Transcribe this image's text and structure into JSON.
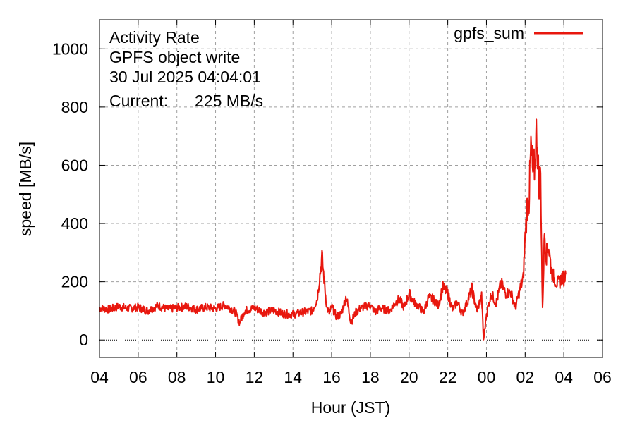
{
  "chart_data": {
    "type": "line",
    "title_lines": [
      "Activity Rate",
      "GPFS object write",
      "30 Jul 2025 04:04:01"
    ],
    "current_label": "Current:",
    "current_value": "225 MB/s",
    "xlabel": "Hour (JST)",
    "ylabel": "speed [MB/s]",
    "xlim": [
      0,
      26
    ],
    "ylim": [
      -60,
      1100
    ],
    "x_ticks": [
      {
        "v": 0,
        "label": "04"
      },
      {
        "v": 2,
        "label": "06"
      },
      {
        "v": 4,
        "label": "08"
      },
      {
        "v": 6,
        "label": "10"
      },
      {
        "v": 8,
        "label": "12"
      },
      {
        "v": 10,
        "label": "14"
      },
      {
        "v": 12,
        "label": "16"
      },
      {
        "v": 14,
        "label": "18"
      },
      {
        "v": 16,
        "label": "20"
      },
      {
        "v": 18,
        "label": "22"
      },
      {
        "v": 20,
        "label": "00"
      },
      {
        "v": 22,
        "label": "02"
      },
      {
        "v": 24,
        "label": "04"
      },
      {
        "v": 26,
        "label": "06"
      }
    ],
    "y_ticks": [
      0,
      200,
      400,
      600,
      800,
      1000
    ],
    "grid": true,
    "legend_position": "top-right",
    "series": [
      {
        "name": "gpfs_sum",
        "color": "#e8170e",
        "x": [
          0,
          0.5,
          1,
          1.5,
          2,
          2.5,
          3,
          3.5,
          4,
          4.5,
          5,
          5.5,
          6,
          6.5,
          7,
          7.25,
          7.5,
          8,
          8.5,
          9,
          9.5,
          10,
          10.5,
          11,
          11.25,
          11.5,
          11.75,
          11.9,
          12,
          12.25,
          12.5,
          12.75,
          13,
          13.25,
          13.5,
          14,
          14.25,
          14.5,
          15,
          15.25,
          15.5,
          15.75,
          16,
          16.25,
          16.5,
          16.75,
          17,
          17.25,
          17.5,
          17.75,
          18,
          18.25,
          18.5,
          18.75,
          19,
          19.25,
          19.5,
          19.75,
          19.85,
          20,
          20.25,
          20.5,
          20.75,
          21,
          21.25,
          21.5,
          21.75,
          21.9,
          22,
          22.1,
          22.2,
          22.3,
          22.4,
          22.5,
          22.6,
          22.7,
          22.8,
          22.9,
          23,
          23.1,
          23.2,
          23.35,
          23.5,
          23.65,
          23.8,
          23.9,
          24,
          24.1
        ],
        "y": [
          110,
          105,
          115,
          108,
          112,
          100,
          118,
          106,
          110,
          115,
          105,
          112,
          108,
          120,
          98,
          60,
          100,
          110,
          95,
          102,
          90,
          88,
          95,
          100,
          140,
          285,
          110,
          90,
          115,
          80,
          90,
          150,
          60,
          95,
          110,
          120,
          95,
          110,
          100,
          125,
          140,
          110,
          160,
          130,
          115,
          95,
          145,
          140,
          120,
          180,
          160,
          105,
          130,
          90,
          130,
          175,
          100,
          150,
          0,
          90,
          160,
          125,
          195,
          160,
          165,
          110,
          180,
          210,
          350,
          460,
          480,
          660,
          570,
          600,
          730,
          545,
          560,
          100,
          370,
          290,
          330,
          240,
          210,
          195,
          200,
          215,
          210,
          225
        ]
      }
    ]
  }
}
